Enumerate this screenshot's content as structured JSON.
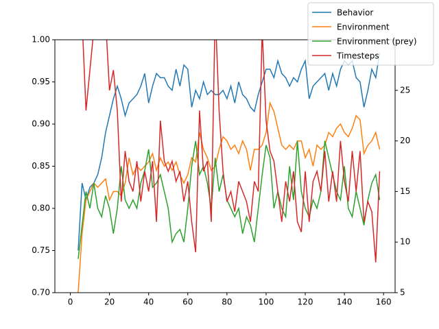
{
  "chart_data": {
    "type": "line",
    "x": [
      4,
      6,
      8,
      10,
      12,
      14,
      16,
      18,
      20,
      22,
      24,
      26,
      28,
      30,
      32,
      34,
      36,
      38,
      40,
      42,
      44,
      46,
      48,
      50,
      52,
      54,
      56,
      58,
      60,
      62,
      64,
      66,
      68,
      70,
      72,
      74,
      76,
      78,
      80,
      82,
      84,
      86,
      88,
      90,
      92,
      94,
      96,
      98,
      100,
      102,
      104,
      106,
      108,
      110,
      112,
      114,
      116,
      118,
      120,
      122,
      124,
      126,
      128,
      130,
      132,
      134,
      136,
      138,
      140,
      142,
      144,
      146,
      148,
      150,
      152,
      154,
      156,
      158
    ],
    "series": [
      {
        "name": "Behavior",
        "color": "#1f77b4",
        "values": [
          0.75,
          0.83,
          0.81,
          0.825,
          0.83,
          0.84,
          0.86,
          0.89,
          0.91,
          0.93,
          0.945,
          0.93,
          0.91,
          0.925,
          0.93,
          0.935,
          0.945,
          0.96,
          0.925,
          0.945,
          0.96,
          0.955,
          0.955,
          0.945,
          0.94,
          0.965,
          0.945,
          0.97,
          0.965,
          0.92,
          0.94,
          0.93,
          0.95,
          0.935,
          0.94,
          0.935,
          0.935,
          0.94,
          0.93,
          0.945,
          0.925,
          0.95,
          0.935,
          0.93,
          0.92,
          0.915,
          0.935,
          0.95,
          0.965,
          0.965,
          0.955,
          0.975,
          0.96,
          0.955,
          0.945,
          0.955,
          0.95,
          0.965,
          0.975,
          0.93,
          0.945,
          0.95,
          0.955,
          0.96,
          0.94,
          0.96,
          0.945,
          0.965,
          0.975,
          0.97,
          0.975,
          0.955,
          0.95,
          0.92,
          0.94,
          0.965,
          0.955,
          0.985
        ]
      },
      {
        "name": "Environment",
        "color": "#ff7f0e",
        "values": [
          0.7,
          0.77,
          0.81,
          0.82,
          0.83,
          0.825,
          0.83,
          0.835,
          0.81,
          0.82,
          0.82,
          0.815,
          0.83,
          0.86,
          0.84,
          0.85,
          0.845,
          0.85,
          0.855,
          0.865,
          0.845,
          0.86,
          0.85,
          0.855,
          0.845,
          0.855,
          0.84,
          0.83,
          0.84,
          0.86,
          0.855,
          0.89,
          0.87,
          0.86,
          0.845,
          0.85,
          0.87,
          0.885,
          0.88,
          0.87,
          0.875,
          0.865,
          0.88,
          0.87,
          0.845,
          0.87,
          0.87,
          0.875,
          0.89,
          0.925,
          0.915,
          0.895,
          0.875,
          0.87,
          0.875,
          0.87,
          0.88,
          0.88,
          0.86,
          0.87,
          0.85,
          0.875,
          0.87,
          0.875,
          0.89,
          0.885,
          0.895,
          0.9,
          0.89,
          0.885,
          0.895,
          0.91,
          0.905,
          0.865,
          0.875,
          0.88,
          0.89,
          0.87
        ]
      },
      {
        "name": "Environment (prey)",
        "color": "#2ca02c",
        "values": [
          0.74,
          0.78,
          0.82,
          0.8,
          0.83,
          0.8,
          0.79,
          0.815,
          0.8,
          0.77,
          0.8,
          0.85,
          0.81,
          0.8,
          0.81,
          0.8,
          0.83,
          0.845,
          0.87,
          0.825,
          0.83,
          0.84,
          0.82,
          0.8,
          0.76,
          0.77,
          0.775,
          0.76,
          0.8,
          0.85,
          0.88,
          0.84,
          0.85,
          0.83,
          0.8,
          0.86,
          0.82,
          0.84,
          0.81,
          0.8,
          0.79,
          0.8,
          0.77,
          0.79,
          0.78,
          0.76,
          0.8,
          0.84,
          0.875,
          0.86,
          0.8,
          0.82,
          0.8,
          0.79,
          0.85,
          0.81,
          0.88,
          0.82,
          0.8,
          0.79,
          0.81,
          0.8,
          0.82,
          0.88,
          0.86,
          0.84,
          0.82,
          0.81,
          0.85,
          0.8,
          0.79,
          0.82,
          0.8,
          0.78,
          0.81,
          0.83,
          0.84,
          0.81
        ]
      },
      {
        "name": "Timesteps",
        "color": "#d62728",
        "axis": "y2",
        "values": [
          32,
          32,
          23,
          27,
          31,
          32,
          32,
          32,
          25,
          27,
          23,
          14,
          19,
          16,
          15,
          18,
          14,
          17,
          15,
          18,
          12,
          22,
          18,
          17,
          18,
          16,
          17,
          14,
          16,
          12,
          9,
          23,
          17,
          18,
          12,
          33,
          23,
          17,
          14,
          15,
          13,
          16,
          15,
          14,
          12,
          16,
          15,
          31,
          22,
          19,
          18,
          15,
          12,
          16,
          14,
          17,
          12,
          11,
          17,
          12,
          16,
          17,
          15,
          19,
          14,
          17,
          14,
          20,
          16,
          14,
          19,
          15,
          19,
          12,
          14,
          13,
          8,
          17
        ]
      }
    ],
    "xlim": [
      -7.9,
      165.9
    ],
    "xticks": [
      0,
      20,
      40,
      60,
      80,
      100,
      120,
      140,
      160
    ],
    "ylim": [
      0.7,
      1.0
    ],
    "yticks": [
      {
        "value": 0.7,
        "label": "0.70"
      },
      {
        "value": 0.75,
        "label": "0.75"
      },
      {
        "value": 0.8,
        "label": "0.80"
      },
      {
        "value": 0.85,
        "label": "0.85"
      },
      {
        "value": 0.9,
        "label": "0.90"
      },
      {
        "value": 0.95,
        "label": "0.95"
      },
      {
        "value": 1.0,
        "label": "1.00"
      }
    ],
    "y2lim": [
      5,
      30
    ],
    "y2ticks": [
      5,
      10,
      15,
      20,
      25
    ],
    "legend": "upper right"
  }
}
